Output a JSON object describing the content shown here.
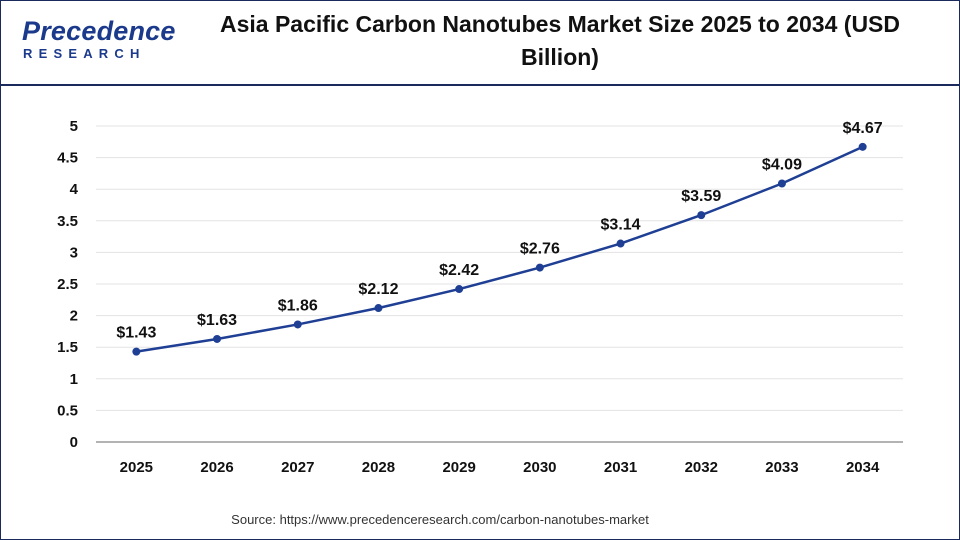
{
  "brand": {
    "logo_word": "Precedence",
    "logo_sub": "RESEARCH"
  },
  "chart_data": {
    "type": "line",
    "title": "Asia Pacific Carbon Nanotubes Market Size 2025 to 2034 (USD Billion)",
    "categories": [
      "2025",
      "2026",
      "2027",
      "2028",
      "2029",
      "2030",
      "2031",
      "2032",
      "2033",
      "2034"
    ],
    "series": [
      {
        "values": [
          1.43,
          1.63,
          1.86,
          2.12,
          2.42,
          2.76,
          3.14,
          3.59,
          4.09,
          4.67
        ],
        "labels": [
          "$1.43",
          "$1.63",
          "$1.86",
          "$2.12",
          "$2.42",
          "$2.76",
          "$3.14",
          "$3.59",
          "$4.09",
          "$4.67"
        ],
        "color": "#1f3f94"
      }
    ],
    "xlabel": "",
    "ylabel": "",
    "ylim": [
      0,
      5
    ],
    "yticks": [
      "0",
      "0.5",
      "1",
      "1.5",
      "2",
      "2.5",
      "3",
      "3.5",
      "4",
      "4.5",
      "5"
    ],
    "grid": true,
    "legend": "none"
  },
  "source": "Source: https://www.precedenceresearch.com/carbon-nanotubes-market"
}
